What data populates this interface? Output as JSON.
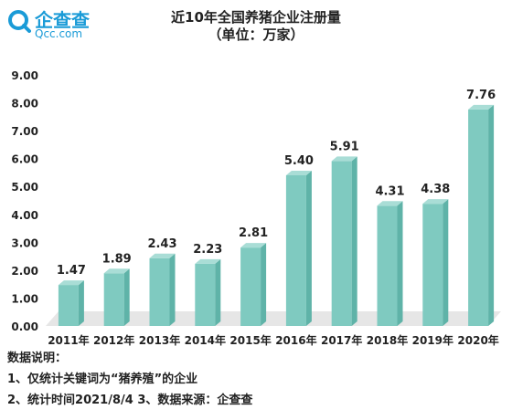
{
  "logo": {
    "main_text": "企查查",
    "sub_text": "Qcc.com",
    "icon": "qcc-magnifier-logo"
  },
  "chart_data": {
    "type": "bar",
    "title": "近10年全国养猪企业注册量",
    "subtitle": "（单位：万家）",
    "categories": [
      "2011年",
      "2012年",
      "2013年",
      "2014年",
      "2015年",
      "2016年",
      "2017年",
      "2018年",
      "2019年",
      "2020年"
    ],
    "values": [
      1.47,
      1.89,
      2.43,
      2.23,
      2.81,
      5.4,
      5.91,
      4.31,
      4.38,
      7.76
    ],
    "value_labels": [
      "1.47",
      "1.89",
      "2.43",
      "2.23",
      "2.81",
      "5.40",
      "5.91",
      "4.31",
      "4.38",
      "7.76"
    ],
    "ylim": [
      0,
      9
    ],
    "yticks": [
      "0.00",
      "1.00",
      "2.00",
      "3.00",
      "4.00",
      "5.00",
      "6.00",
      "7.00",
      "8.00",
      "9.00"
    ],
    "grid": false,
    "legend": "none",
    "bar_color": "#7fcac0",
    "bar_side_color": "#5fb3a8",
    "bar_top_color": "#a9ddd6"
  },
  "notes": {
    "heading": "数据说明：",
    "line1": "1、仅统计关键词为“猪养殖”的企业",
    "line2": "2、统计时间2021/8/4   3、数据来源：企查查"
  }
}
